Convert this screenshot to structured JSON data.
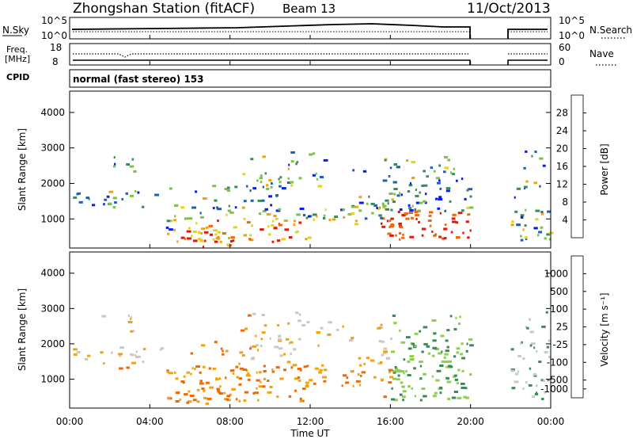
{
  "header": {
    "station": "Zhongshan Station (fitACF)",
    "beam": "Beam 13",
    "date": "11/Oct/2013"
  },
  "panels": {
    "nsky": {
      "label": "N.Sky",
      "tick_top": "10^5",
      "tick_bottom": "10^0",
      "right_label": "N.Search",
      "right_tick_top": "10^5",
      "right_tick_bottom": "10^0"
    },
    "freq": {
      "label_line1": "Freq.",
      "label_line2": "[MHz]",
      "tick_top": "18",
      "tick_bottom": "8",
      "right_label": "Nave",
      "right_tick_top": "60",
      "right_tick_bottom": "0"
    },
    "cpid": {
      "label": "CPID",
      "value": "normal (fast stereo) 153"
    }
  },
  "colors": {
    "power": [
      "#0a1ee6",
      "#1f5fb4",
      "#3c8a5a",
      "#7cc24a",
      "#e6d21e",
      "#f2a20e",
      "#ec6a0a",
      "#e01a06"
    ],
    "velocity": [
      "#e01a06",
      "#ec6a0a",
      "#f2a20e",
      "#c8c8c4",
      "#8ed04a",
      "#3c8a5a",
      "#1f5fb4",
      "#0a1ee6"
    ]
  },
  "chart_data": [
    {
      "type": "heatmap",
      "title": "Power",
      "xlabel": "Time UT",
      "ylabel": "Slant Range [km]",
      "x_ticks": [
        "00:00",
        "04:00",
        "08:00",
        "12:00",
        "16:00",
        "20:00",
        "00:00"
      ],
      "x_range_hours": [
        0,
        24
      ],
      "y_ticks": [
        "1000",
        "2000",
        "3000",
        "4000"
      ],
      "ylim": [
        180,
        4600
      ],
      "colorbar": {
        "label": "Power [dB]",
        "ticks": [
          "4",
          "8",
          "12",
          "16",
          "20",
          "24",
          "28"
        ],
        "range": [
          0,
          32
        ]
      },
      "data_gap_hours": [
        20.0,
        21.8
      ]
    },
    {
      "type": "heatmap",
      "title": "Velocity",
      "xlabel": "Time UT",
      "ylabel": "Slant Range [km]",
      "x_ticks": [
        "00:00",
        "04:00",
        "08:00",
        "12:00",
        "16:00",
        "20:00",
        "00:00"
      ],
      "x_range_hours": [
        0,
        24
      ],
      "y_ticks": [
        "1000",
        "2000",
        "3000",
        "4000"
      ],
      "ylim": [
        180,
        4600
      ],
      "colorbar": {
        "label": "Velocity [m s⁻¹]",
        "ticks": [
          "1000",
          "500",
          "100",
          "25",
          "-25",
          "-100",
          "-500",
          "-1000"
        ]
      },
      "data_gap_hours": [
        20.0,
        21.8
      ]
    }
  ],
  "x_axis_title": "Time UT"
}
